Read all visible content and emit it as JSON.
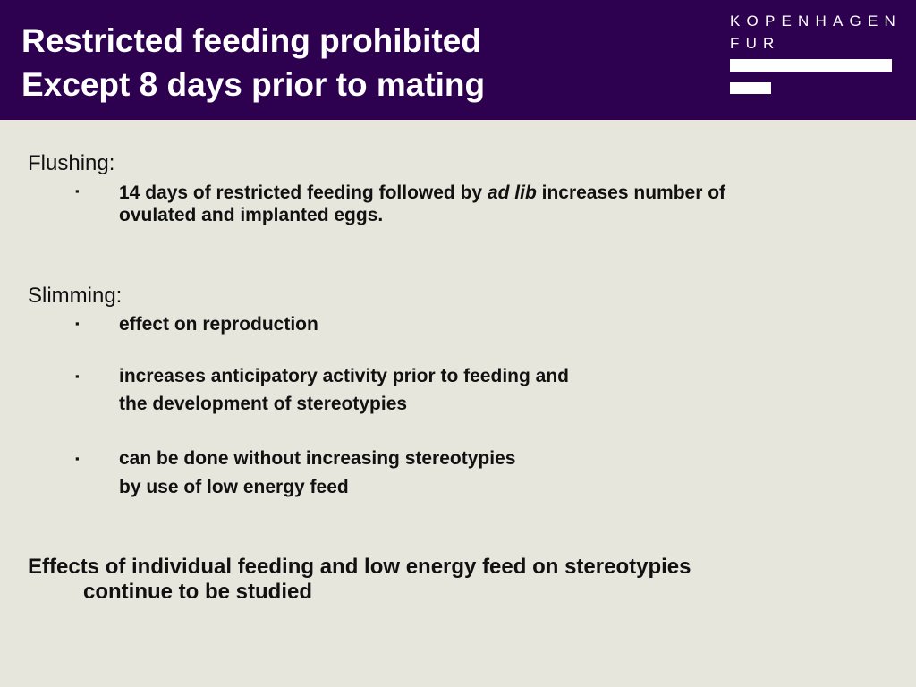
{
  "slide": {
    "title_line_1": "Restricted feeding prohibited",
    "title_line_2": "Except 8 days prior to mating"
  },
  "logo": {
    "line_1": "KOPENHAGEN",
    "line_2": "FUR"
  },
  "colors": {
    "header_background": "#2d0150",
    "slide_background": "#e7e6dc",
    "logo_color": "#ffffff"
  },
  "bullet_glyph": "▪",
  "flushing": {
    "heading": "Flushing:",
    "item_1": {
      "text_before": "14 days of restricted feeding followed by ",
      "emphasis": "ad lib",
      "text_after": " increases number of",
      "line_2": "ovulated and implanted eggs."
    }
  },
  "slimming": {
    "heading": "Slimming:",
    "item_1": "effect on reproduction",
    "item_2_line_1": "increases anticipatory activity prior to feeding and",
    "item_2_line_2": "the development of stereotypies",
    "item_3_line_1": "can be done without increasing stereotypies",
    "item_3_line_2": "by use of low energy feed"
  },
  "closing": {
    "line_1": "Effects of individual feeding and low energy feed on stereotypies",
    "line_2": "continue to be studied"
  }
}
